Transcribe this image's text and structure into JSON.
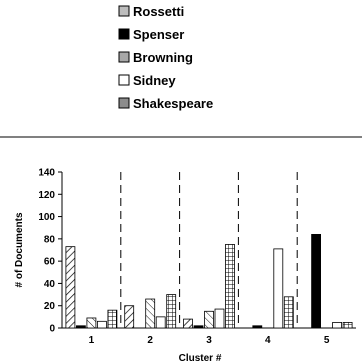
{
  "chart_data": {
    "type": "bar",
    "title": "",
    "xlabel": "Cluster #",
    "ylabel": "# of Documents",
    "categories": [
      "1",
      "2",
      "3",
      "4",
      "5"
    ],
    "ylim": [
      0,
      140
    ],
    "yticks": [
      0,
      20,
      40,
      60,
      80,
      100,
      120,
      140
    ],
    "grid": false,
    "legend_position": "top",
    "series": [
      {
        "name": "Rossetti",
        "pattern": "diagonal-hatch",
        "values": [
          73,
          20,
          8,
          0,
          0
        ]
      },
      {
        "name": "Spenser",
        "pattern": "solid-black",
        "values": [
          2,
          0,
          2,
          2,
          84
        ]
      },
      {
        "name": "Browning",
        "pattern": "diagonal-hatch-light",
        "values": [
          9,
          26,
          15,
          0,
          0
        ]
      },
      {
        "name": "Sidney",
        "pattern": "white",
        "values": [
          6,
          10,
          17,
          71,
          5
        ]
      },
      {
        "name": "Shakespeare",
        "pattern": "grid-hatch",
        "values": [
          16,
          30,
          75,
          28,
          5
        ]
      }
    ]
  }
}
